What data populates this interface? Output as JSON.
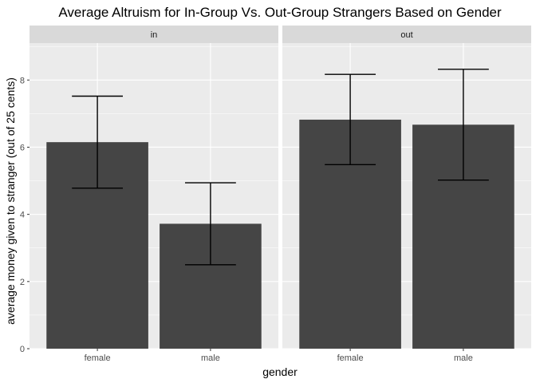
{
  "chart_data": {
    "type": "bar",
    "title": "Average Altruism for In-Group Vs. Out-Group Strangers Based on Gender",
    "xlabel": "gender",
    "ylabel": "average money given to stranger (out of 25 cents)",
    "categories": [
      "female",
      "male"
    ],
    "ylim": [
      0,
      9.1
    ],
    "yticks": [
      0,
      2,
      4,
      6,
      8
    ],
    "grid": true,
    "facets": [
      {
        "label": "in",
        "values": [
          6.15,
          3.72
        ],
        "error_low": [
          4.78,
          2.5
        ],
        "error_high": [
          7.52,
          4.94
        ]
      },
      {
        "label": "out",
        "values": [
          6.82,
          6.67
        ],
        "error_low": [
          5.48,
          5.02
        ],
        "error_high": [
          8.17,
          8.32
        ]
      }
    ],
    "colors": {
      "bar": "#454545",
      "panel_background": "#ebebeb",
      "strip_background": "#d9d9d9",
      "grid": "#ffffff",
      "error_bar": "#000000"
    }
  }
}
